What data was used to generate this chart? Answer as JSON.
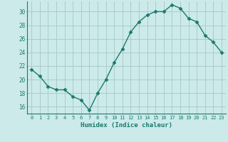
{
  "x": [
    0,
    1,
    2,
    3,
    4,
    5,
    6,
    7,
    8,
    9,
    10,
    11,
    12,
    13,
    14,
    15,
    16,
    17,
    18,
    19,
    20,
    21,
    22,
    23
  ],
  "y": [
    21.5,
    20.5,
    19.0,
    18.5,
    18.5,
    17.5,
    17.0,
    15.5,
    18.0,
    20.0,
    22.5,
    24.5,
    27.0,
    28.5,
    29.5,
    30.0,
    30.0,
    31.0,
    30.5,
    29.0,
    28.5,
    26.5,
    25.5,
    24.0
  ],
  "line_color": "#1a7a6e",
  "marker_color": "#1a7a6e",
  "bg_color": "#cceaea",
  "grid_color": "#aacccc",
  "xlabel": "Humidex (Indice chaleur)",
  "xlim": [
    -0.5,
    23.5
  ],
  "ylim": [
    15.0,
    31.5
  ],
  "yticks": [
    16,
    18,
    20,
    22,
    24,
    26,
    28,
    30
  ],
  "xticks": [
    0,
    1,
    2,
    3,
    4,
    5,
    6,
    7,
    8,
    9,
    10,
    11,
    12,
    13,
    14,
    15,
    16,
    17,
    18,
    19,
    20,
    21,
    22,
    23
  ],
  "xtick_labels": [
    "0",
    "1",
    "2",
    "3",
    "4",
    "5",
    "6",
    "7",
    "8",
    "9",
    "10",
    "11",
    "12",
    "13",
    "14",
    "15",
    "16",
    "17",
    "18",
    "19",
    "20",
    "21",
    "22",
    "23"
  ]
}
